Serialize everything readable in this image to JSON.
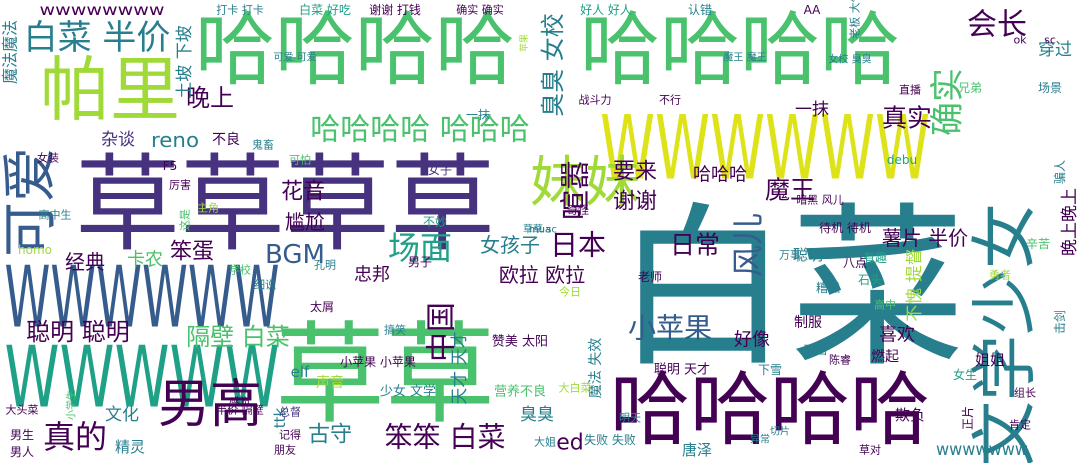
{
  "words": [
    "白菜",
    "草草草草",
    "哈哈哈哈",
    "哈哈哈哈",
    "哈哈哈哈",
    "WWWWWW",
    "WWWWWW",
    "WWWWW",
    "草草",
    "文学少女",
    "帕里",
    "妹妹",
    "男高",
    "可爱",
    "白菜 半价",
    "确实",
    "会长",
    "哈哈哈哈 哈哈哈",
    "臭臭 女校",
    "晚上",
    "土坡 下坡",
    "真实",
    "花音",
    "尴尬",
    "杂谈",
    "reno",
    "谢谢",
    "要来",
    "喧嚣",
    "哈哈哈",
    "魔王",
    "日常",
    "日本",
    "风儿",
    "小苹果",
    "BGM",
    "场面",
    "女孩子",
    "欧拉 欧拉",
    "忠邦",
    "经典",
    "卡农",
    "笨蛋",
    "聪明 聪明",
    "隔壁 白菜",
    "中国",
    "天才 天才",
    "好像",
    "喜欢",
    "薯片 半价",
    "聪明",
    "不愧 提督",
    "古守",
    "笨笨 白菜",
    "真的",
    "文化",
    "精灵",
    "臭臭",
    "ed",
    "唐泽",
    "wwwwwww",
    "欺负",
    "姐姐",
    "晚上晚上",
    "穿过",
    "wwwwwwww",
    "一抹",
    "不良",
    "elf",
    "聪明 天才",
    "魔法 失效",
    "制服",
    "燃起",
    "ttk",
    "少女 文学",
    "赞美 太阳",
    "营养不良",
    "小苹果 小苹果",
    "魔法魔法",
    "打卡 打卡",
    "白菜 好吃",
    "谢谢 打钱",
    "确实 确实",
    "好人 好人",
    "认错",
    "老板 大气",
    "可爱 可爱",
    "魔王 魔王",
    "女校 臭臭",
    "苹果",
    "男子",
    "一抹",
    "战斗力",
    "八点",
    "待机 待机",
    "动画",
    "陈睿",
    "下雪",
    "女生",
    "男生",
    "男人",
    "大头菜",
    "小学生",
    "声音",
    "半价 隔壁",
    "朋友",
    "记得",
    "失败 失败",
    "大姐",
    "切片",
    "异常",
    "草对",
    "正片",
    "组长",
    "肯定",
    "击剑",
    "场景",
    "兄弟",
    "骗人",
    "辛苦",
    "勇者",
    "有趣",
    "糟糕",
    "高中",
    "石头",
    "高中生",
    "女装",
    "学校",
    "细说",
    "搞笑",
    "今日",
    "明天",
    "大白菜",
    "不行",
    "万事",
    "直播",
    "太屑",
    "鬼畜",
    "主角",
    "可怕",
    "厉害",
    "这是",
    "奇怪",
    "不妙",
    "女子",
    "老师",
    "暗黑 风儿",
    "总督",
    "孔明",
    "感觉",
    "homo",
    "debu",
    "F5",
    "AA",
    "ok",
    "sc",
    "mua",
    "mua",
    "草草 sc"
  ]
}
